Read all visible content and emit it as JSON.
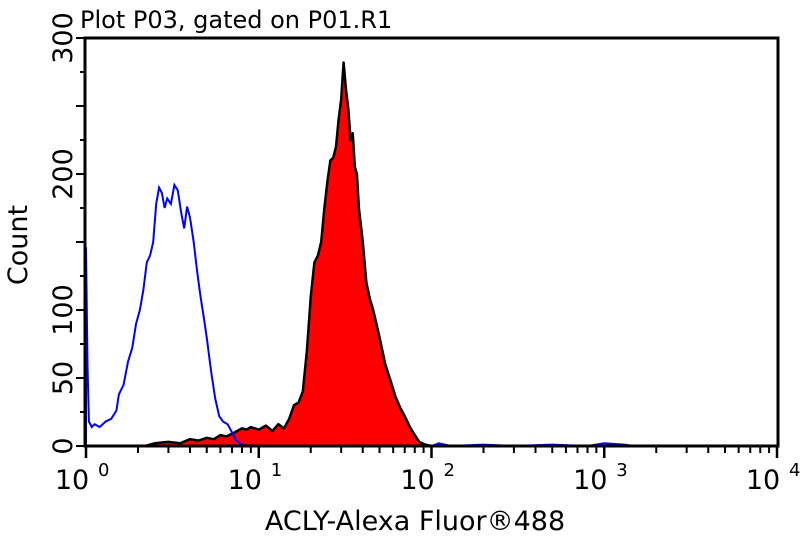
{
  "chart_data": {
    "type": "line",
    "title": "Plot P03, gated on P01.R1",
    "xlabel": "ACLY-Alexa Fluor®488",
    "ylabel": "Count",
    "x_scale": "log",
    "xlim": [
      1,
      10000
    ],
    "ylim": [
      0,
      300
    ],
    "x_ticks": [
      {
        "base": "10",
        "exp": "0"
      },
      {
        "base": "10",
        "exp": "1"
      },
      {
        "base": "10",
        "exp": "2"
      },
      {
        "base": "10",
        "exp": "3"
      },
      {
        "base": "10",
        "exp": "4"
      }
    ],
    "y_ticks": [
      "0",
      "50",
      "100",
      "200",
      "300"
    ],
    "grid": false,
    "series": [
      {
        "color": "#0000ff",
        "fill": false,
        "points": [
          [
            1.0,
            0
          ],
          [
            1.0,
            146
          ],
          [
            1.02,
            60
          ],
          [
            1.04,
            18
          ],
          [
            1.08,
            14
          ],
          [
            1.12,
            16
          ],
          [
            1.2,
            14
          ],
          [
            1.3,
            18
          ],
          [
            1.4,
            20
          ],
          [
            1.5,
            26
          ],
          [
            1.55,
            38
          ],
          [
            1.65,
            45
          ],
          [
            1.75,
            62
          ],
          [
            1.85,
            72
          ],
          [
            1.95,
            90
          ],
          [
            2.05,
            100
          ],
          [
            2.15,
            115
          ],
          [
            2.25,
            135
          ],
          [
            2.35,
            140
          ],
          [
            2.45,
            150
          ],
          [
            2.55,
            178
          ],
          [
            2.65,
            190
          ],
          [
            2.75,
            186
          ],
          [
            2.85,
            175
          ],
          [
            2.95,
            182
          ],
          [
            3.1,
            178
          ],
          [
            3.25,
            192
          ],
          [
            3.4,
            188
          ],
          [
            3.55,
            172
          ],
          [
            3.7,
            160
          ],
          [
            3.85,
            176
          ],
          [
            4.0,
            168
          ],
          [
            4.2,
            150
          ],
          [
            4.4,
            128
          ],
          [
            4.6,
            110
          ],
          [
            4.8,
            95
          ],
          [
            5.0,
            80
          ],
          [
            5.3,
            55
          ],
          [
            5.6,
            35
          ],
          [
            5.9,
            22
          ],
          [
            6.2,
            18
          ],
          [
            6.6,
            16
          ],
          [
            7.0,
            10
          ],
          [
            7.4,
            4
          ],
          [
            8.0,
            1
          ],
          [
            9,
            0
          ],
          [
            100,
            0
          ],
          [
            110,
            2
          ],
          [
            130,
            0
          ],
          [
            200,
            1
          ],
          [
            300,
            0
          ],
          [
            500,
            1
          ],
          [
            800,
            0
          ],
          [
            1000,
            2
          ],
          [
            1300,
            1
          ],
          [
            1500,
            0
          ]
        ]
      },
      {
        "color": "#ff0000",
        "stroke": "#000000",
        "fill": true,
        "points": [
          [
            2.2,
            0
          ],
          [
            2.5,
            2
          ],
          [
            3,
            3
          ],
          [
            3.5,
            2
          ],
          [
            4,
            5
          ],
          [
            4.5,
            4
          ],
          [
            5,
            6
          ],
          [
            5.5,
            5
          ],
          [
            6,
            8
          ],
          [
            6.5,
            7
          ],
          [
            7,
            9
          ],
          [
            7.5,
            11
          ],
          [
            8,
            13
          ],
          [
            8.5,
            12
          ],
          [
            9,
            14
          ],
          [
            10,
            12
          ],
          [
            11,
            15
          ],
          [
            12,
            11
          ],
          [
            13,
            16
          ],
          [
            14,
            13
          ],
          [
            15,
            20
          ],
          [
            15.5,
            25
          ],
          [
            16,
            30
          ],
          [
            17,
            32
          ],
          [
            18,
            40
          ],
          [
            19,
            70
          ],
          [
            20,
            110
          ],
          [
            21,
            135
          ],
          [
            22,
            140
          ],
          [
            23,
            150
          ],
          [
            24,
            175
          ],
          [
            25,
            195
          ],
          [
            26,
            210
          ],
          [
            27,
            212
          ],
          [
            28,
            220
          ],
          [
            29,
            240
          ],
          [
            30,
            255
          ],
          [
            31,
            282
          ],
          [
            32,
            262
          ],
          [
            33,
            248
          ],
          [
            34,
            225
          ],
          [
            35,
            230
          ],
          [
            36,
            205
          ],
          [
            37,
            200
          ],
          [
            38,
            175
          ],
          [
            40,
            150
          ],
          [
            42,
            120
          ],
          [
            44,
            108
          ],
          [
            46,
            100
          ],
          [
            48,
            90
          ],
          [
            50,
            80
          ],
          [
            54,
            60
          ],
          [
            58,
            48
          ],
          [
            62,
            36
          ],
          [
            66,
            28
          ],
          [
            70,
            22
          ],
          [
            75,
            14
          ],
          [
            80,
            8
          ],
          [
            85,
            3
          ],
          [
            92,
            1
          ],
          [
            100,
            0
          ]
        ]
      }
    ]
  }
}
